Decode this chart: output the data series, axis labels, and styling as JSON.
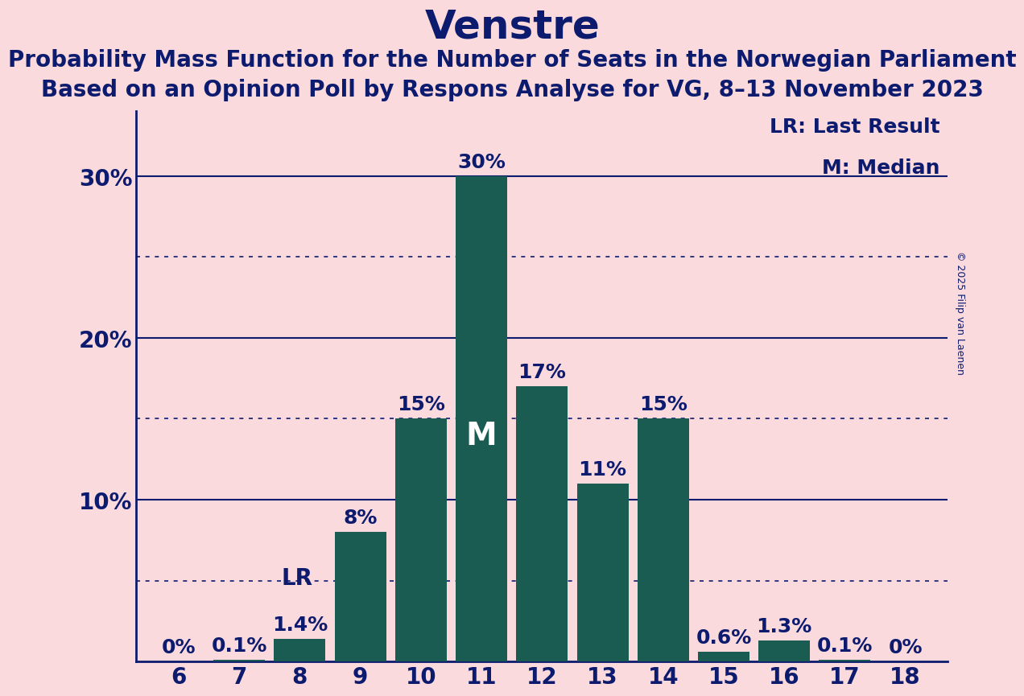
{
  "title": "Venstre",
  "subtitle1": "Probability Mass Function for the Number of Seats in the Norwegian Parliament",
  "subtitle2": "Based on an Opinion Poll by Respons Analyse for VG, 8–13 November 2023",
  "copyright": "© 2025 Filip van Laenen",
  "seats": [
    6,
    7,
    8,
    9,
    10,
    11,
    12,
    13,
    14,
    15,
    16,
    17,
    18
  ],
  "probabilities": [
    0.0,
    0.1,
    1.4,
    8.0,
    15.0,
    30.0,
    17.0,
    11.0,
    15.0,
    0.6,
    1.3,
    0.1,
    0.0
  ],
  "bar_color": "#1a5c52",
  "background_color": "#fadadd",
  "text_color": "#0d1b6e",
  "last_result_seat": 8,
  "median_seat": 11,
  "ylim": [
    0,
    34
  ],
  "yticks": [
    10,
    20,
    30
  ],
  "ytick_labels": [
    "10%",
    "20%",
    "30%"
  ],
  "solid_gridlines": [
    10,
    20,
    30
  ],
  "dotted_gridlines": [
    5,
    15,
    25
  ],
  "legend_lr": "LR: Last Result",
  "legend_m": "M: Median",
  "title_fontsize": 36,
  "subtitle_fontsize": 20,
  "axis_fontsize": 20,
  "bar_label_fontsize": 18,
  "lr_label_fontsize": 20,
  "m_label_fontsize": 28
}
